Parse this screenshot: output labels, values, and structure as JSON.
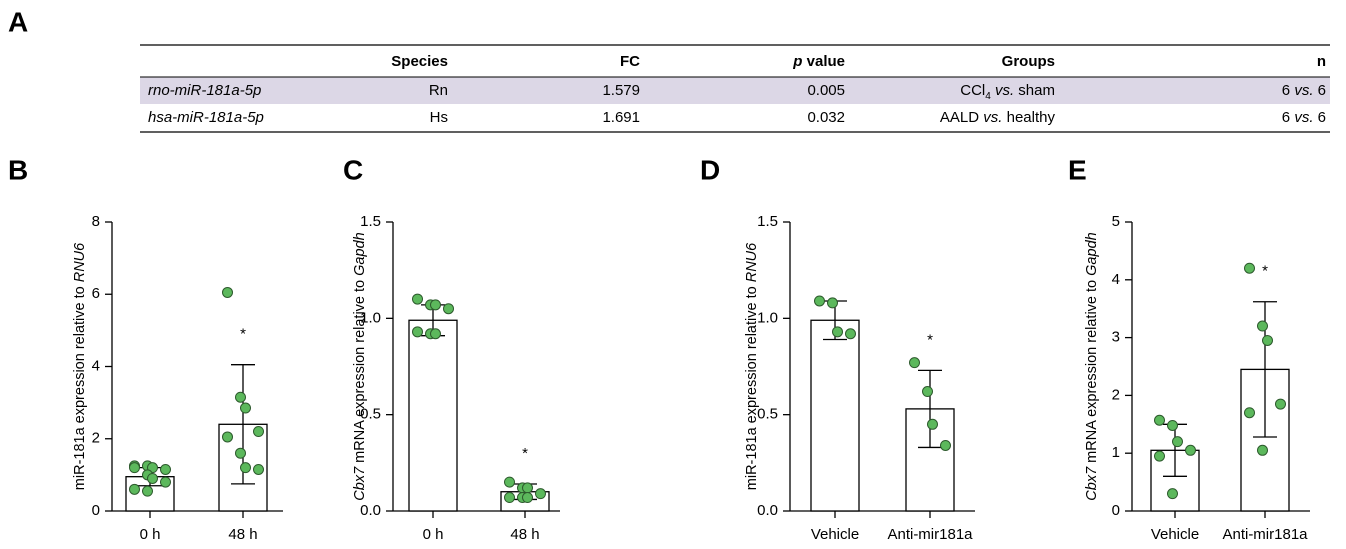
{
  "panel_A": {
    "label": "A",
    "table": {
      "header": [
        [
          {
            "t": "Species"
          }
        ],
        [
          {
            "t": "FC"
          }
        ],
        [
          {
            "t": "p",
            "s": "i"
          },
          {
            "t": " value"
          }
        ],
        [
          {
            "t": "Groups"
          }
        ],
        [
          {
            "t": "n"
          }
        ]
      ],
      "rows": [
        [
          [
            {
              "t": "rno-miR-181a-5p",
              "s": "i"
            }
          ],
          [
            {
              "t": "Rn"
            }
          ],
          [
            {
              "t": "1.579"
            }
          ],
          [
            {
              "t": "0.005"
            }
          ],
          [
            {
              "t": "CCl"
            },
            {
              "t": "4",
              "s": "sub"
            },
            {
              "t": " vs.",
              "s": "i"
            },
            {
              "t": " sham"
            }
          ],
          [
            {
              "t": "6 "
            },
            {
              "t": "vs.",
              "s": "i"
            },
            {
              "t": " 6"
            }
          ]
        ],
        [
          [
            {
              "t": "hsa-miR-181a-5p",
              "s": "i"
            }
          ],
          [
            {
              "t": "Hs"
            }
          ],
          [
            {
              "t": "1.691"
            }
          ],
          [
            {
              "t": "0.032"
            }
          ],
          [
            {
              "t": "AALD "
            },
            {
              "t": "vs.",
              "s": "i"
            },
            {
              "t": " healthy"
            }
          ],
          [
            {
              "t": "6 "
            },
            {
              "t": "vs.",
              "s": "i"
            },
            {
              "t": " 6"
            }
          ]
        ]
      ],
      "shaded_row_color": "#dcd7e6"
    }
  },
  "chart_data": [
    {
      "type": "bar",
      "panel_label": "B",
      "ylabel": [
        {
          "t": "miR-181a expression relative to "
        },
        {
          "t": "RNU6",
          "s": "i"
        }
      ],
      "categories": [
        "0 h",
        "48 h"
      ],
      "values": [
        0.95,
        2.4
      ],
      "errors": [
        0.25,
        1.65
      ],
      "points": [
        [
          1.25,
          1.25,
          1.2,
          1.15,
          1.2,
          1.0,
          0.9,
          0.8,
          0.6,
          0.55
        ],
        [
          6.05,
          3.15,
          2.85,
          2.2,
          2.05,
          1.6,
          1.2,
          1.15
        ]
      ],
      "annotations": [
        null,
        "*"
      ],
      "ylim": [
        0,
        8
      ],
      "yticks": [
        0,
        2,
        4,
        6,
        8
      ],
      "bar_color": "#ffffff",
      "point_color": "#5cb85c"
    },
    {
      "type": "bar",
      "panel_label": "C",
      "ylabel": [
        {
          "t": "Cbx7",
          "s": "i"
        },
        {
          "t": " mRNA expression relative to "
        },
        {
          "t": "Gapdh",
          "s": "i"
        }
      ],
      "categories": [
        "0 h",
        "48 h"
      ],
      "values": [
        0.99,
        0.1
      ],
      "errors": [
        0.08,
        0.04
      ],
      "points": [
        [
          1.1,
          1.07,
          1.07,
          1.05,
          0.93,
          0.92,
          0.92
        ],
        [
          0.15,
          0.12,
          0.12,
          0.09,
          0.07,
          0.07,
          0.07
        ]
      ],
      "annotations": [
        null,
        "*"
      ],
      "ylim": [
        0,
        1.5
      ],
      "yticks": [
        {
          "value": 0,
          "label": "0.0"
        },
        {
          "value": 0.5,
          "label": "0.5"
        },
        {
          "value": 1,
          "label": "1.0"
        },
        {
          "value": 1.5,
          "label": "1.5"
        }
      ],
      "bar_color": "#ffffff",
      "point_color": "#5cb85c"
    },
    {
      "type": "bar",
      "panel_label": "D",
      "ylabel": [
        {
          "t": "miR-181a expression relative to "
        },
        {
          "t": "RNU6",
          "s": "i"
        }
      ],
      "categories": [
        "Vehicle",
        "Anti-mir181a"
      ],
      "values": [
        0.99,
        0.53
      ],
      "errors": [
        0.1,
        0.2
      ],
      "points": [
        [
          1.09,
          1.08,
          0.93,
          0.92
        ],
        [
          0.77,
          0.62,
          0.45,
          0.34
        ]
      ],
      "annotations": [
        null,
        "*"
      ],
      "ylim": [
        0,
        1.5
      ],
      "yticks": [
        {
          "value": 0,
          "label": "0.0"
        },
        {
          "value": 0.5,
          "label": "0.5"
        },
        {
          "value": 1,
          "label": "1.0"
        },
        {
          "value": 1.5,
          "label": "1.5"
        }
      ],
      "bar_color": "#ffffff",
      "point_color": "#5cb85c"
    },
    {
      "type": "bar",
      "panel_label": "E",
      "ylabel": [
        {
          "t": "Cbx7",
          "s": "i"
        },
        {
          "t": " mRNA expression relative to "
        },
        {
          "t": "Gapdh",
          "s": "i"
        }
      ],
      "categories": [
        "Vehicle",
        "Anti-mir181a"
      ],
      "values": [
        1.05,
        2.45
      ],
      "errors": [
        0.45,
        1.17
      ],
      "points": [
        [
          1.57,
          1.48,
          1.2,
          1.05,
          0.95,
          0.3
        ],
        [
          4.2,
          3.2,
          2.95,
          1.85,
          1.7,
          1.05
        ]
      ],
      "annotations": [
        null,
        "*"
      ],
      "ylim": [
        0,
        5
      ],
      "yticks": [
        0,
        1,
        2,
        3,
        4,
        5
      ],
      "bar_color": "#ffffff",
      "point_color": "#5cb85c"
    }
  ]
}
